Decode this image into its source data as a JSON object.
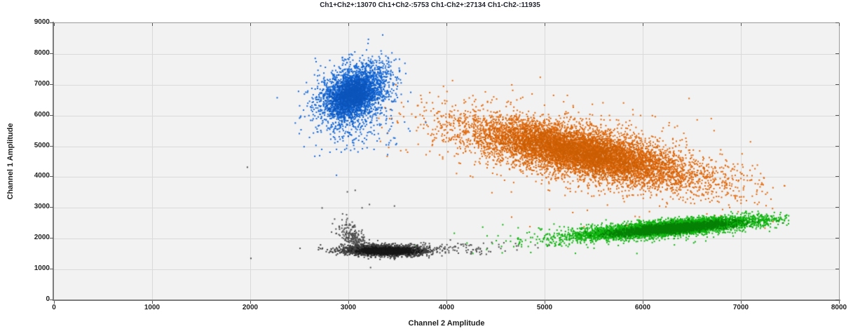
{
  "chart_data": {
    "type": "scatter",
    "title": "Ch1+Ch2+:13070 Ch1+Ch2-:5753 Ch1-Ch2+:27134 Ch1-Ch2-:11935",
    "xlabel": "Channel 2 Amplitude",
    "ylabel": "Channel 1 Amplitude",
    "xlim": [
      0,
      8000
    ],
    "ylim": [
      0,
      9000
    ],
    "x_ticks": [
      0,
      1000,
      2000,
      3000,
      4000,
      5000,
      6000,
      7000,
      8000
    ],
    "y_ticks": [
      0,
      1000,
      2000,
      3000,
      4000,
      5000,
      6000,
      7000,
      8000,
      9000
    ],
    "grid": true,
    "legend": "none",
    "plot_bg": "#f2f2f2",
    "grid_color": "#dadada",
    "populations": [
      {
        "label": "Ch1+Ch2+",
        "count": 13070,
        "color": "#e0690d",
        "center": [
          5350,
          4800
        ],
        "description": "double-positive droplets (orange)"
      },
      {
        "label": "Ch1+Ch2-",
        "count": 5753,
        "color": "#1367d6",
        "center": [
          3060,
          6700
        ],
        "description": "channel-1-only positive droplets (blue)"
      },
      {
        "label": "Ch1-Ch2+",
        "count": 27134,
        "color": "#0db30d",
        "center": [
          6280,
          2350
        ],
        "description": "channel-2-only positive droplets (green)"
      },
      {
        "label": "Ch1-Ch2-",
        "count": 11935,
        "color": "#3e3e3e",
        "center": [
          3360,
          1615
        ],
        "description": "double-negative droplets (gray/black)"
      }
    ],
    "render_clusters": [
      {
        "name": "orange-halo",
        "color": "#e0690d",
        "count": 420,
        "center": [
          5450,
          4750
        ],
        "sigma": [
          900,
          820
        ],
        "slope": -0.55,
        "xmax": 7450
      },
      {
        "name": "orange-main",
        "color": "#e0690d",
        "count": 6200,
        "center": [
          5380,
          4800
        ],
        "sigma": [
          660,
          420
        ],
        "slope": -0.62,
        "xmax": 7450
      },
      {
        "name": "orange-core",
        "color": "#cb5e04",
        "count": 2600,
        "center": [
          5330,
          4830
        ],
        "sigma": [
          400,
          300
        ],
        "slope": -0.62,
        "xmax": 7450
      },
      {
        "name": "orange-singles",
        "color": "#e0690d",
        "points": [
          [
            4664,
            2700
          ],
          [
            5050,
            2950
          ]
        ]
      },
      {
        "name": "blue-tail",
        "color": "#1367d6",
        "count": 110,
        "center": [
          3120,
          5400
        ],
        "sigma": [
          230,
          420
        ],
        "slope": 0.5,
        "xmax": 8000
      },
      {
        "name": "blue-main",
        "color": "#1367d6",
        "count": 2700,
        "center": [
          3060,
          6720
        ],
        "sigma": [
          185,
          470
        ],
        "slope": 0.9,
        "xmax": 8000
      },
      {
        "name": "blue-core",
        "color": "#0c55bb",
        "count": 1100,
        "center": [
          3040,
          6660
        ],
        "sigma": [
          105,
          280
        ],
        "slope": 0.9,
        "xmax": 8000
      },
      {
        "name": "green-halo",
        "color": "#0db30d",
        "count": 260,
        "center": [
          5650,
          2150
        ],
        "sigma": [
          680,
          230
        ],
        "slope": 0.15,
        "xmax": 7500
      },
      {
        "name": "green-main",
        "color": "#0db30d",
        "count": 5600,
        "center": [
          6280,
          2350
        ],
        "sigma": [
          460,
          115
        ],
        "slope": 0.26,
        "xmax": 7500
      },
      {
        "name": "green-core",
        "color": "#078007",
        "count": 2400,
        "center": [
          6300,
          2340
        ],
        "sigma": [
          290,
          70
        ],
        "slope": 0.26,
        "xmax": 7500
      },
      {
        "name": "gray-wisp",
        "color": "#4d4d4d",
        "count": 230,
        "center": [
          3060,
          2000
        ],
        "sigma": [
          80,
          210
        ],
        "slope": -2.0,
        "xmax": 8000
      },
      {
        "name": "gray-halo",
        "color": "#4d4d4d",
        "count": 150,
        "center": [
          3950,
          1680
        ],
        "sigma": [
          430,
          110
        ],
        "slope": 0,
        "xmax": 8000
      },
      {
        "name": "gray-main",
        "color": "#3e3e3e",
        "count": 2900,
        "center": [
          3360,
          1615
        ],
        "sigma": [
          195,
          80
        ],
        "slope": -0.05,
        "xmax": 8000
      },
      {
        "name": "gray-core",
        "color": "#171717",
        "count": 1500,
        "center": [
          3390,
          1600
        ],
        "sigma": [
          125,
          48
        ],
        "slope": 0,
        "xmax": 8000
      },
      {
        "name": "gray-singles",
        "color": "#4d4d4d",
        "points": [
          [
            1971,
            4320
          ],
          [
            2007,
            1360
          ],
          [
            2990,
            3520
          ],
          [
            3070,
            3570
          ],
          [
            3140,
            3000
          ],
          [
            3215,
            3110
          ],
          [
            3470,
            3060
          ]
        ]
      }
    ]
  }
}
